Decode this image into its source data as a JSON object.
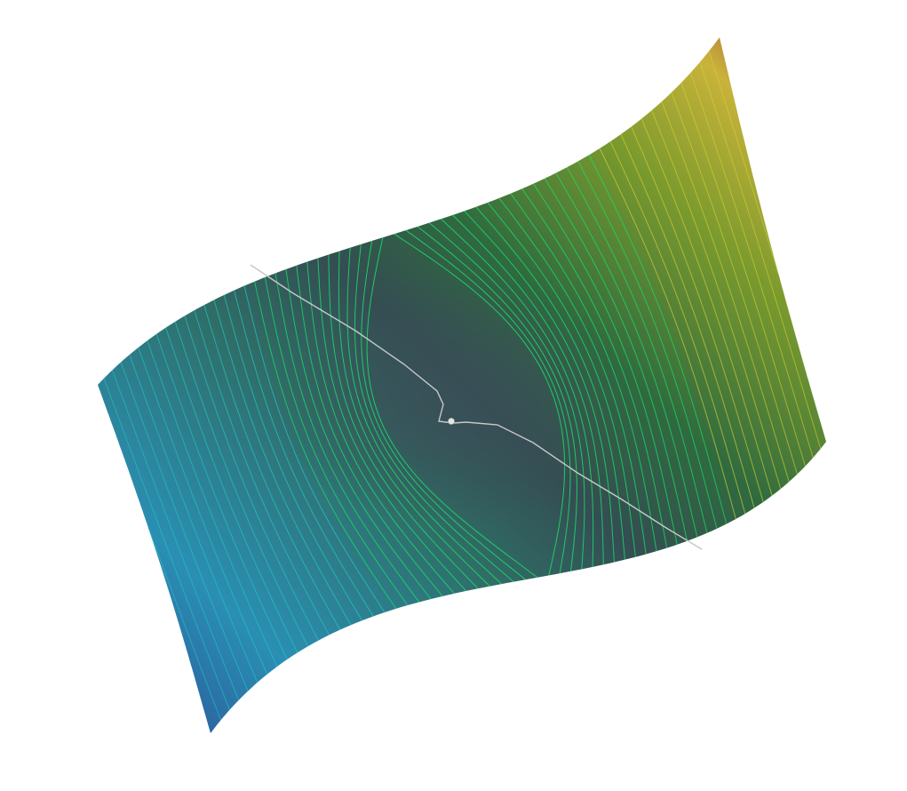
{
  "scene": {
    "background": "#ffffff",
    "surface": {
      "kind": "3D saddle surface with contour lines",
      "colormap": [
        "#2f4a8f",
        "#2bb3c9",
        "#2f9a7a",
        "#2e5f4a",
        "#6a8f2a",
        "#c9c23a",
        "#c7683a",
        "#a0304a"
      ],
      "center_color": "#344d52",
      "contour_color_inner": "#19e36a",
      "contour_color_outer": "#25c8c8",
      "contour_color_far": "#d8d23a"
    },
    "path": {
      "color": "#c8c8c8",
      "marker_color": "#e6e6e6"
    }
  }
}
